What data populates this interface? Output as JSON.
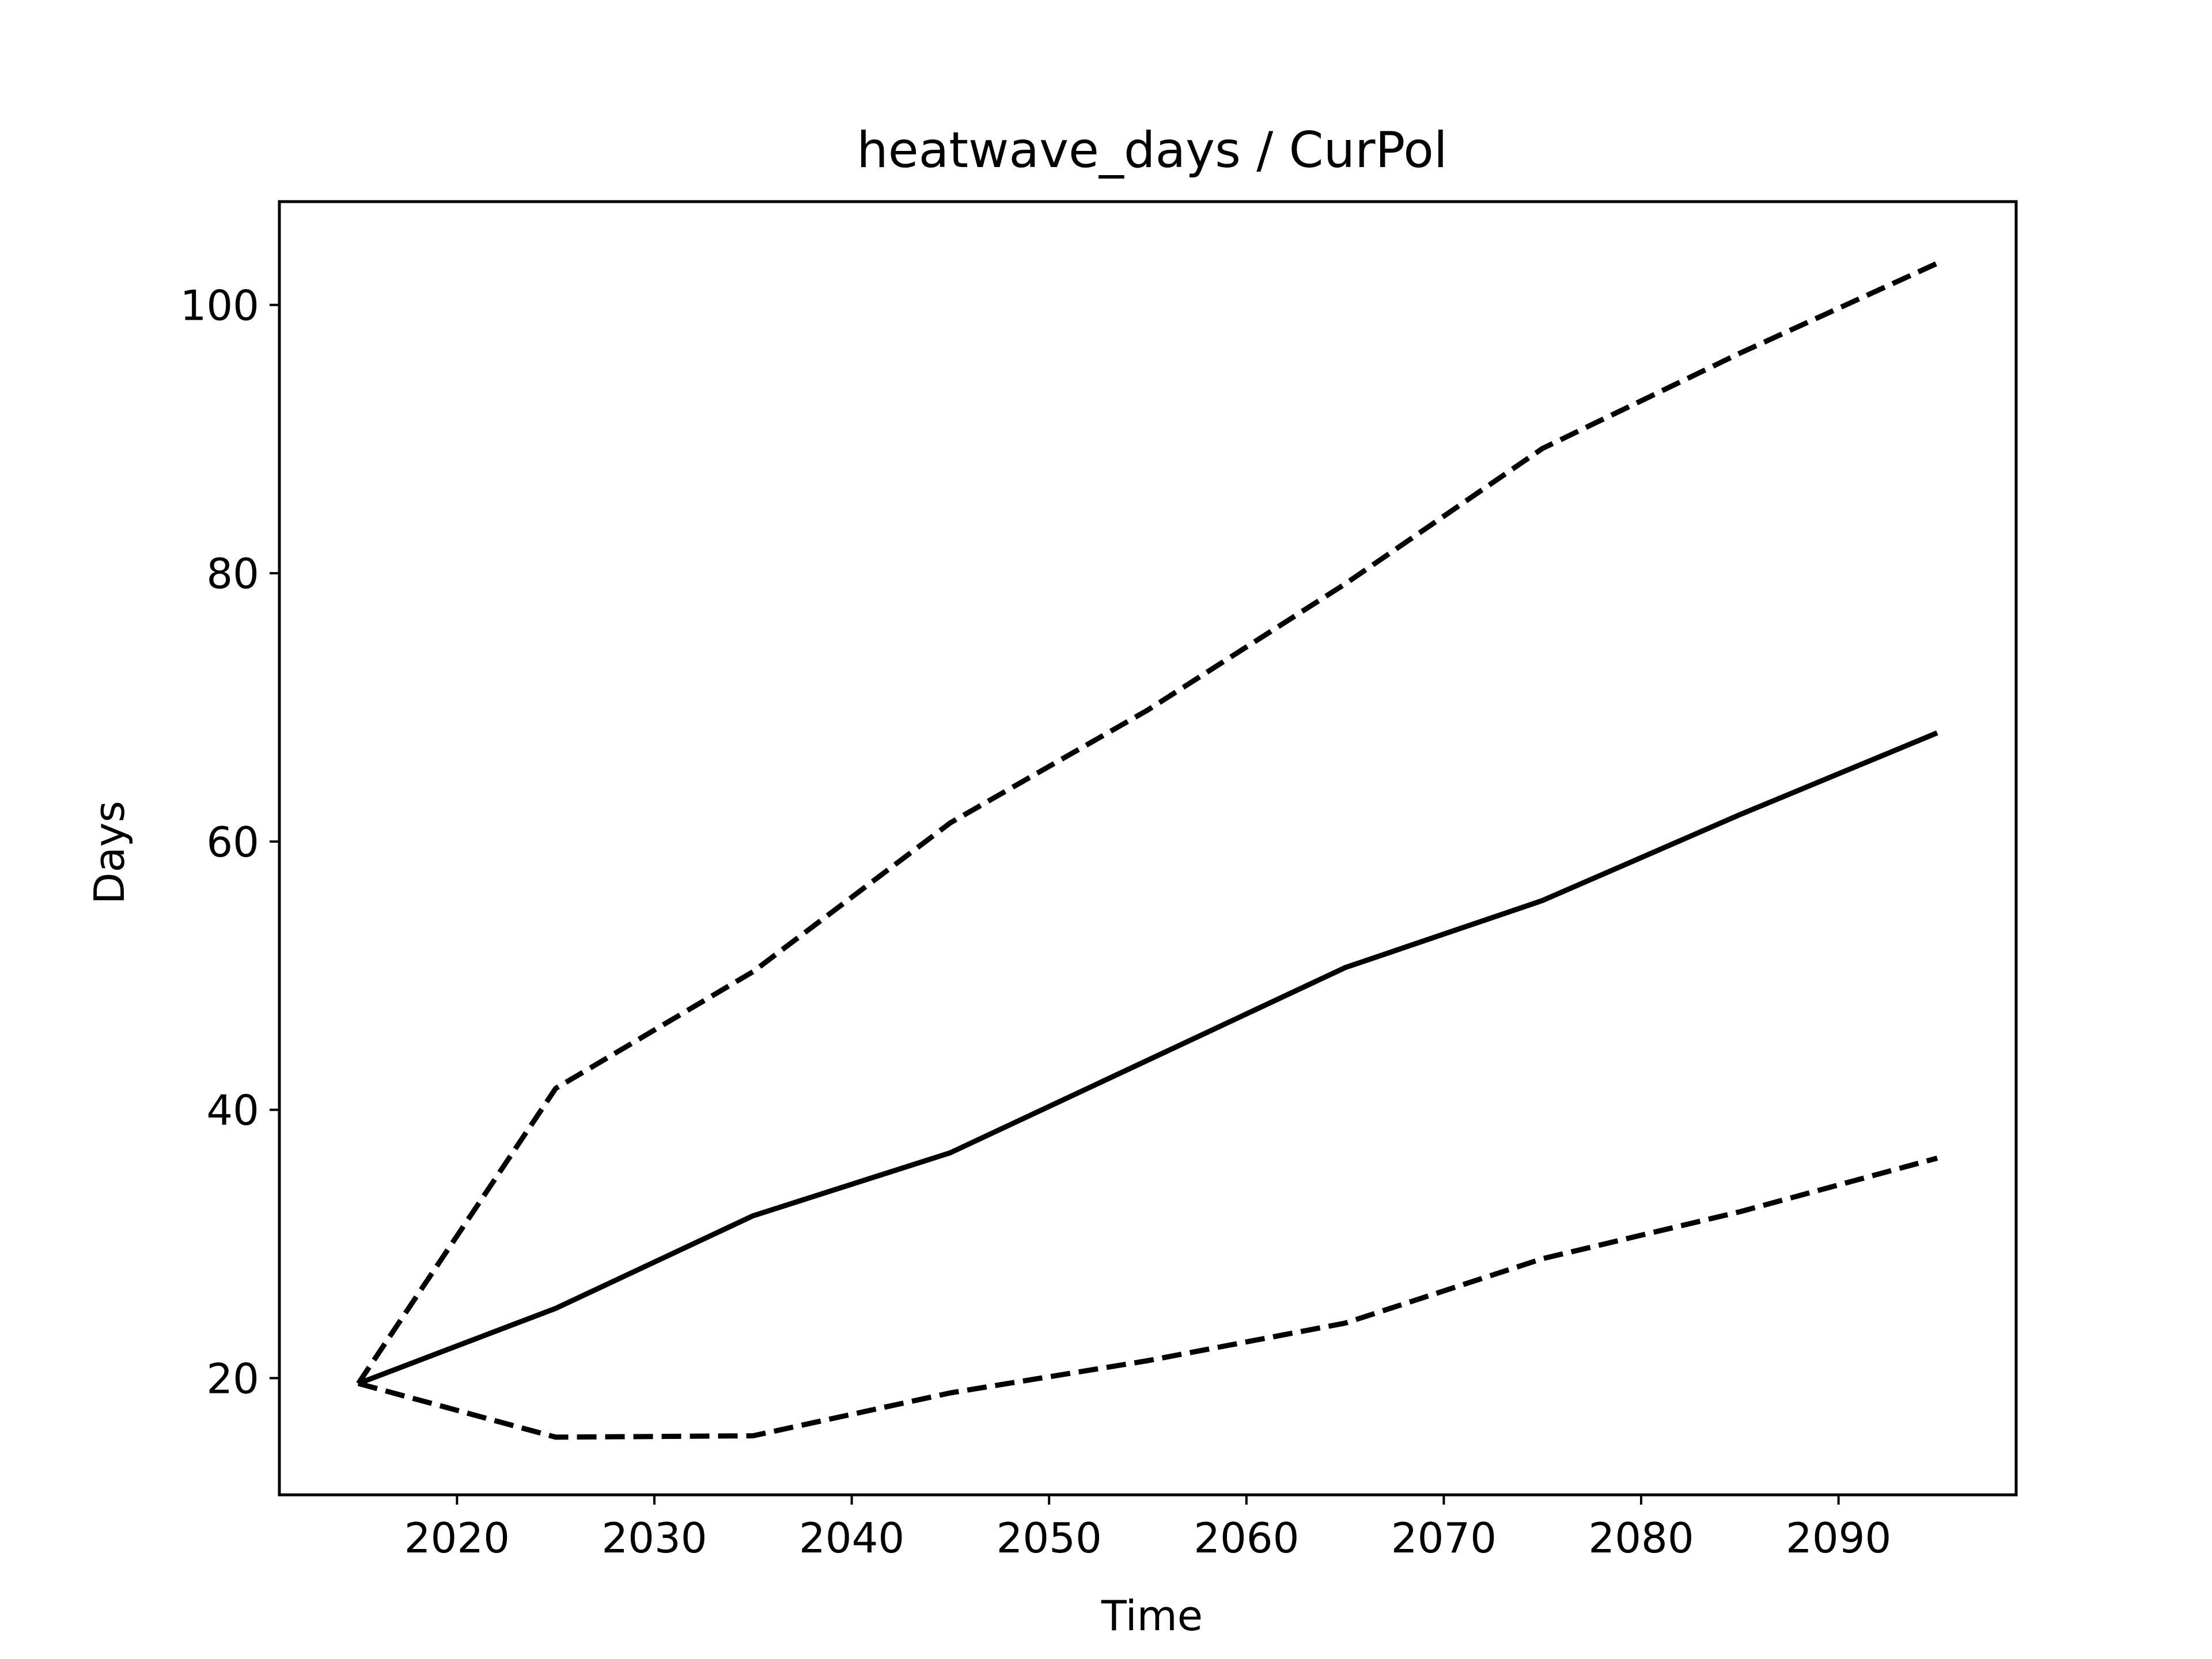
{
  "chart_data": {
    "type": "line",
    "title": "heatwave_days / CurPol",
    "xlabel": "Time",
    "ylabel": "Days",
    "xlim": [
      2011,
      2099
    ],
    "ylim": [
      11.3,
      107.7
    ],
    "xticks": [
      2020,
      2030,
      2040,
      2050,
      2060,
      2070,
      2080,
      2090
    ],
    "yticks": [
      20,
      40,
      60,
      80,
      100
    ],
    "grid": false,
    "legend": "none",
    "series": [
      {
        "style": "solid",
        "color": "#000000",
        "x": [
          2015,
          2025,
          2035,
          2045,
          2055,
          2065,
          2075,
          2085,
          2095
        ],
        "y": [
          19.6,
          25.2,
          32.1,
          36.8,
          43.7,
          50.6,
          55.6,
          62.0,
          68.1
        ]
      },
      {
        "style": "dashed",
        "color": "#000000",
        "x": [
          2015,
          2025,
          2035,
          2045,
          2055,
          2065,
          2075,
          2085,
          2095
        ],
        "y": [
          19.6,
          41.6,
          50.3,
          61.4,
          69.8,
          79.2,
          89.3,
          96.4,
          103.1
        ]
      },
      {
        "style": "dashed",
        "color": "#000000",
        "x": [
          2015,
          2025,
          2035,
          2045,
          2055,
          2065,
          2075,
          2085,
          2095
        ],
        "y": [
          19.6,
          15.6,
          15.7,
          18.9,
          21.3,
          24.1,
          28.9,
          32.4,
          36.4
        ]
      }
    ]
  }
}
